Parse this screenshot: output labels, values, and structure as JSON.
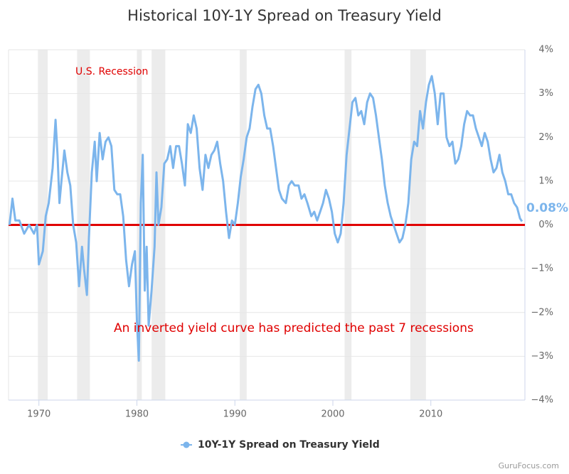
{
  "chart_data": {
    "type": "line",
    "title": "Historical 10Y-1Y Spread on Treasury Yield",
    "recession_label": "U.S. Recession",
    "annotation": "An inverted yield curve has predicted the past 7 recessions",
    "last_value_label": "0.08%",
    "watermark": "GuruFocus.com",
    "recessions": [
      [
        1969.9,
        1970.9
      ],
      [
        1973.9,
        1975.2
      ],
      [
        1980.0,
        1980.5
      ],
      [
        1981.5,
        1982.9
      ],
      [
        1990.5,
        1991.2
      ],
      [
        2001.2,
        2001.9
      ],
      [
        2007.9,
        2009.5
      ]
    ],
    "zero_line": 0,
    "zero_line_color": "#e00000",
    "xlim": [
      1966.9,
      2019.6
    ],
    "xticks": [
      1970,
      1980,
      1990,
      2000,
      2010
    ],
    "ylim": [
      -4,
      4
    ],
    "yticks": [
      {
        "value": -4,
        "label": "−4%"
      },
      {
        "value": -3,
        "label": "−3%"
      },
      {
        "value": -2,
        "label": "−2%"
      },
      {
        "value": -1,
        "label": "−1%"
      },
      {
        "value": 0,
        "label": "0%"
      },
      {
        "value": 1,
        "label": "1%"
      },
      {
        "value": 2,
        "label": "2%"
      },
      {
        "value": 3,
        "label": "3%"
      },
      {
        "value": 4,
        "label": "4%"
      }
    ],
    "grid": true,
    "x": [
      1967.0,
      1967.3,
      1967.6,
      1968.0,
      1968.5,
      1969.0,
      1969.5,
      1969.8,
      1970.0,
      1970.4,
      1970.7,
      1971.0,
      1971.4,
      1971.7,
      1971.9,
      1972.1,
      1972.3,
      1972.6,
      1972.9,
      1973.2,
      1973.5,
      1973.8,
      1974.1,
      1974.4,
      1974.6,
      1974.9,
      1975.1,
      1975.4,
      1975.7,
      1975.9,
      1976.2,
      1976.5,
      1976.8,
      1977.1,
      1977.4,
      1977.7,
      1978.0,
      1978.3,
      1978.6,
      1978.9,
      1979.2,
      1979.5,
      1979.8,
      1980.0,
      1980.2,
      1980.4,
      1980.6,
      1980.8,
      1981.0,
      1981.2,
      1981.5,
      1981.8,
      1982.0,
      1982.2,
      1982.5,
      1982.8,
      1983.1,
      1983.4,
      1983.7,
      1984.0,
      1984.3,
      1984.6,
      1984.9,
      1985.2,
      1985.5,
      1985.8,
      1986.1,
      1986.4,
      1986.7,
      1987.0,
      1987.3,
      1987.6,
      1987.9,
      1988.2,
      1988.5,
      1988.8,
      1989.1,
      1989.4,
      1989.7,
      1990.0,
      1990.3,
      1990.6,
      1990.9,
      1991.2,
      1991.5,
      1991.8,
      1992.1,
      1992.4,
      1992.7,
      1993.0,
      1993.3,
      1993.6,
      1993.9,
      1994.2,
      1994.5,
      1994.8,
      1995.2,
      1995.5,
      1995.8,
      1996.1,
      1996.5,
      1996.8,
      1997.1,
      1997.4,
      1997.8,
      1998.1,
      1998.4,
      1998.7,
      1999.0,
      1999.3,
      1999.6,
      1999.9,
      2000.2,
      2000.5,
      2000.8,
      2001.1,
      2001.4,
      2001.7,
      2002.0,
      2002.3,
      2002.6,
      2002.9,
      2003.2,
      2003.5,
      2003.8,
      2004.1,
      2004.4,
      2004.7,
      2005.0,
      2005.3,
      2005.6,
      2005.9,
      2006.2,
      2006.5,
      2006.8,
      2007.1,
      2007.4,
      2007.7,
      2008.0,
      2008.3,
      2008.6,
      2008.9,
      2009.2,
      2009.5,
      2009.8,
      2010.1,
      2010.4,
      2010.7,
      2011.0,
      2011.3,
      2011.6,
      2011.9,
      2012.2,
      2012.5,
      2012.8,
      2013.1,
      2013.4,
      2013.7,
      2014.0,
      2014.3,
      2014.6,
      2014.9,
      2015.2,
      2015.5,
      2015.8,
      2016.1,
      2016.4,
      2016.7,
      2017.0,
      2017.3,
      2017.6,
      2017.9,
      2018.2,
      2018.5,
      2018.8,
      2019.1,
      2019.3
    ],
    "series": [
      {
        "name": "10Y-1Y Spread on Treasury Yield",
        "color": "#7cb5ec",
        "values": [
          0.0,
          0.6,
          0.1,
          0.1,
          -0.2,
          0.0,
          -0.2,
          0.0,
          -0.9,
          -0.6,
          0.2,
          0.5,
          1.3,
          2.4,
          1.6,
          0.5,
          1.0,
          1.7,
          1.2,
          0.9,
          0.0,
          -0.4,
          -1.4,
          -0.5,
          -1.0,
          -1.6,
          -0.3,
          1.2,
          1.9,
          1.0,
          2.1,
          1.5,
          1.9,
          2.0,
          1.8,
          0.8,
          0.7,
          0.7,
          0.2,
          -0.8,
          -1.4,
          -0.9,
          -0.6,
          -2.2,
          -3.1,
          0.5,
          1.6,
          -1.5,
          -0.5,
          -2.3,
          -1.5,
          -0.5,
          1.2,
          0.0,
          0.4,
          1.4,
          1.5,
          1.8,
          1.3,
          1.8,
          1.8,
          1.4,
          0.9,
          2.3,
          2.1,
          2.5,
          2.2,
          1.3,
          0.8,
          1.6,
          1.3,
          1.6,
          1.7,
          1.9,
          1.4,
          1.0,
          0.3,
          -0.3,
          0.1,
          0.0,
          0.5,
          1.1,
          1.5,
          2.0,
          2.2,
          2.7,
          3.1,
          3.2,
          3.0,
          2.5,
          2.2,
          2.2,
          1.8,
          1.3,
          0.8,
          0.6,
          0.5,
          0.9,
          1.0,
          0.9,
          0.9,
          0.6,
          0.7,
          0.5,
          0.2,
          0.3,
          0.1,
          0.3,
          0.5,
          0.8,
          0.6,
          0.3,
          -0.2,
          -0.4,
          -0.2,
          0.5,
          1.6,
          2.2,
          2.8,
          2.9,
          2.5,
          2.6,
          2.3,
          2.8,
          3.0,
          2.9,
          2.5,
          2.0,
          1.5,
          0.9,
          0.5,
          0.2,
          0.0,
          -0.2,
          -0.4,
          -0.3,
          0.0,
          0.5,
          1.5,
          1.9,
          1.8,
          2.6,
          2.2,
          2.8,
          3.2,
          3.4,
          3.0,
          2.3,
          3.0,
          3.0,
          2.0,
          1.8,
          1.9,
          1.4,
          1.5,
          1.8,
          2.3,
          2.6,
          2.5,
          2.5,
          2.2,
          2.0,
          1.8,
          2.1,
          1.9,
          1.5,
          1.2,
          1.3,
          1.6,
          1.2,
          1.0,
          0.7,
          0.7,
          0.5,
          0.4,
          0.15,
          0.08
        ]
      }
    ]
  }
}
